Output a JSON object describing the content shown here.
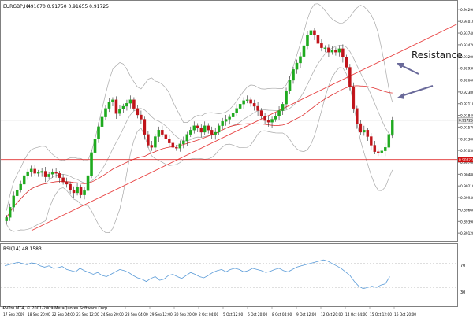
{
  "header": {
    "symbol": "EURGBP,H4",
    "ohlc": "0.91670 0.91750 0.91655 0.91725"
  },
  "indicator": {
    "label": "RSI(14) 48.1583",
    "levels": [
      "70",
      "30"
    ]
  },
  "footer": {
    "copyright": "PVPro MT4, © 2001-2009 MetaQuotes Software Corp."
  },
  "annotation": {
    "resistance_label": "Resistance"
  },
  "colors": {
    "bull_candle": "#1faa1f",
    "bear_candle": "#c0141a",
    "bollinger": "#a8a8a8",
    "moving_average": "#e03030",
    "trendline": "#e84040",
    "horizontal_line": "#e03030",
    "rsi_line": "#5a9bd8",
    "arrow": "#6a6a9a",
    "price_marker_bg": "#d01010"
  },
  "chart_data": [
    {
      "type": "candlestick",
      "title": "EURGBP,H4",
      "ylim": [
        0.8905,
        0.9425
      ],
      "y_ticks": [
        "0.94290",
        "0.94010",
        "0.93740",
        "0.93470",
        "0.93200",
        "0.92930",
        "0.92660",
        "0.92380",
        "0.92110",
        "0.91840",
        "0.91570",
        "0.91300",
        "0.91030",
        "0.90760",
        "0.90480",
        "0.90210",
        "0.89940",
        "0.89660",
        "0.89390",
        "0.89120"
      ],
      "current_price_label": "0.91725",
      "horizontal_level_label": "0.90820",
      "horizontal_level": 0.9082,
      "x_ticks": [
        "17 Sep 2009",
        "18 Sep 20:00",
        "22 Sep 04:00",
        "23 Sep 12:00",
        "24 Sep 20:00",
        "28 Sep 04:00",
        "29 Sep 12:00",
        "30 Sep 20:00",
        "2 Oct 04:00",
        "5 Oct 12:00",
        "6 Oct 20:00",
        "8 Oct 04:00",
        "9 Oct 12:00",
        "12 Oct 20:00",
        "14 Oct 04:00",
        "15 Oct 12:00",
        "16 Oct 20:00"
      ],
      "close_series": [
        0.8948,
        0.8972,
        0.8998,
        0.9012,
        0.9025,
        0.9045,
        0.9054,
        0.906,
        0.905,
        0.9052,
        0.9055,
        0.9042,
        0.9048,
        0.9052,
        0.905,
        0.904,
        0.903,
        0.9025,
        0.9012,
        0.9005,
        0.9018,
        0.9,
        0.901,
        0.9045,
        0.9098,
        0.913,
        0.9158,
        0.918,
        0.92,
        0.9215,
        0.922,
        0.9188,
        0.9198,
        0.9205,
        0.9212,
        0.922,
        0.92,
        0.9185,
        0.9175,
        0.914,
        0.9115,
        0.911,
        0.9135,
        0.915,
        0.914,
        0.913,
        0.912,
        0.911,
        0.9108,
        0.9118,
        0.9125,
        0.914,
        0.915,
        0.916,
        0.9155,
        0.9145,
        0.916,
        0.915,
        0.914,
        0.9145,
        0.916,
        0.917,
        0.9175,
        0.918,
        0.919,
        0.92,
        0.921,
        0.9218,
        0.922,
        0.9212,
        0.9205,
        0.9195,
        0.9182,
        0.9172,
        0.9168,
        0.9175,
        0.9182,
        0.9195,
        0.921,
        0.924,
        0.9265,
        0.929,
        0.9305,
        0.932,
        0.9345,
        0.937,
        0.938,
        0.937,
        0.935,
        0.934,
        0.934,
        0.933,
        0.9335,
        0.933,
        0.9338,
        0.9318,
        0.9295,
        0.925,
        0.92,
        0.9165,
        0.9145,
        0.915,
        0.9135,
        0.9115,
        0.91,
        0.9098,
        0.9102,
        0.911,
        0.914,
        0.9172
      ]
    },
    {
      "type": "line",
      "title": "RSI(14) 48.1583",
      "ylim": [
        0,
        100
      ],
      "levels": [
        70,
        30
      ],
      "values": [
        66,
        68,
        70,
        72,
        70,
        68,
        71,
        70,
        66,
        64,
        66,
        62,
        63,
        65,
        60,
        58,
        56,
        62,
        58,
        55,
        52,
        55,
        50,
        48,
        52,
        56,
        60,
        58,
        55,
        50,
        46,
        44,
        40,
        45,
        48,
        42,
        44,
        50,
        52,
        48,
        45,
        50,
        55,
        52,
        48,
        46,
        50,
        55,
        58,
        60,
        56,
        60,
        62,
        60,
        56,
        58,
        62,
        60,
        58,
        55,
        57,
        60,
        62,
        58,
        56,
        60,
        64,
        66,
        68,
        70,
        72,
        74,
        76,
        74,
        70,
        66,
        62,
        56,
        50,
        40,
        32,
        28,
        30,
        32,
        30,
        34,
        36,
        48
      ]
    }
  ]
}
